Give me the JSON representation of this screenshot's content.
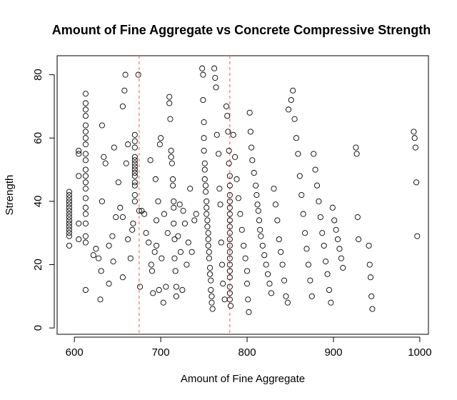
{
  "chart_data": {
    "type": "scatter",
    "title": "Amount of Fine Aggregate vs Concrete Compressive Strength",
    "xlabel": "Amount of Fine Aggregate",
    "ylabel": "Strength",
    "xlim": [
      580,
      1010
    ],
    "ylim": [
      -2,
      86
    ],
    "x_ticks": [
      "600",
      "700",
      "800",
      "900",
      "1000"
    ],
    "y_ticks": [
      "0",
      "20",
      "40",
      "60",
      "80"
    ],
    "grid": false,
    "reference_lines": [
      {
        "x": 675,
        "color": "#ff4d4d",
        "style": "dashed"
      },
      {
        "x": 780,
        "color": "#ff4d4d",
        "style": "dashed"
      }
    ],
    "points": [
      [
        594,
        26
      ],
      [
        594,
        29
      ],
      [
        594,
        30
      ],
      [
        594,
        31
      ],
      [
        594,
        32
      ],
      [
        594,
        33
      ],
      [
        594,
        34
      ],
      [
        594,
        35
      ],
      [
        594,
        36
      ],
      [
        594,
        37
      ],
      [
        594,
        38
      ],
      [
        594,
        39
      ],
      [
        594,
        40
      ],
      [
        594,
        41
      ],
      [
        594,
        42
      ],
      [
        594,
        43
      ],
      [
        605,
        28
      ],
      [
        605,
        33
      ],
      [
        605,
        48
      ],
      [
        605,
        55
      ],
      [
        605,
        56
      ],
      [
        613,
        12
      ],
      [
        613,
        27
      ],
      [
        613,
        29
      ],
      [
        613,
        33
      ],
      [
        613,
        36
      ],
      [
        613,
        38
      ],
      [
        613,
        41
      ],
      [
        613,
        44
      ],
      [
        613,
        46
      ],
      [
        613,
        48
      ],
      [
        613,
        50
      ],
      [
        613,
        53
      ],
      [
        613,
        55
      ],
      [
        613,
        58
      ],
      [
        613,
        60
      ],
      [
        613,
        62
      ],
      [
        613,
        64
      ],
      [
        613,
        67
      ],
      [
        613,
        69
      ],
      [
        613,
        71
      ],
      [
        613,
        74
      ],
      [
        622,
        23
      ],
      [
        625,
        25
      ],
      [
        628,
        22
      ],
      [
        630,
        9
      ],
      [
        631,
        18
      ],
      [
        632,
        40
      ],
      [
        632,
        64
      ],
      [
        634,
        54
      ],
      [
        636,
        52
      ],
      [
        640,
        14
      ],
      [
        640,
        26
      ],
      [
        644,
        29
      ],
      [
        645,
        21
      ],
      [
        646,
        57
      ],
      [
        648,
        35
      ],
      [
        651,
        46
      ],
      [
        653,
        38
      ],
      [
        656,
        16
      ],
      [
        656,
        35
      ],
      [
        656,
        70
      ],
      [
        658,
        75
      ],
      [
        659,
        80
      ],
      [
        660,
        52
      ],
      [
        662,
        28
      ],
      [
        662,
        58
      ],
      [
        665,
        22
      ],
      [
        667,
        31
      ],
      [
        668,
        33
      ],
      [
        670,
        40
      ],
      [
        670,
        42
      ],
      [
        670,
        45
      ],
      [
        670,
        46
      ],
      [
        670,
        48
      ],
      [
        670,
        49
      ],
      [
        670,
        50
      ],
      [
        670,
        51
      ],
      [
        670,
        52
      ],
      [
        670,
        53
      ],
      [
        670,
        54
      ],
      [
        670,
        57
      ],
      [
        670,
        59
      ],
      [
        670,
        61
      ],
      [
        674,
        80
      ],
      [
        675,
        37
      ],
      [
        676,
        13
      ],
      [
        678,
        37
      ],
      [
        681,
        36
      ],
      [
        683,
        30
      ],
      [
        686,
        27
      ],
      [
        688,
        53
      ],
      [
        689,
        20
      ],
      [
        690,
        18
      ],
      [
        691,
        11
      ],
      [
        693,
        24
      ],
      [
        694,
        47
      ],
      [
        695,
        34
      ],
      [
        695,
        26
      ],
      [
        697,
        40
      ],
      [
        698,
        12
      ],
      [
        699,
        58
      ],
      [
        700,
        60
      ],
      [
        701,
        22
      ],
      [
        703,
        8
      ],
      [
        704,
        36
      ],
      [
        706,
        13
      ],
      [
        708,
        30
      ],
      [
        710,
        73
      ],
      [
        710,
        71
      ],
      [
        711,
        66
      ],
      [
        712,
        56
      ],
      [
        712,
        54
      ],
      [
        713,
        52
      ],
      [
        714,
        47
      ],
      [
        714,
        45
      ],
      [
        715,
        40
      ],
      [
        715,
        38
      ],
      [
        715,
        33
      ],
      [
        716,
        28
      ],
      [
        716,
        22
      ],
      [
        717,
        18
      ],
      [
        718,
        13
      ],
      [
        718,
        10
      ],
      [
        720,
        29
      ],
      [
        722,
        39
      ],
      [
        723,
        24
      ],
      [
        725,
        12
      ],
      [
        726,
        37
      ],
      [
        728,
        33
      ],
      [
        730,
        20
      ],
      [
        732,
        27
      ],
      [
        734,
        44
      ],
      [
        736,
        24
      ],
      [
        739,
        34
      ],
      [
        741,
        36
      ],
      [
        748,
        82
      ],
      [
        749,
        80
      ],
      [
        749,
        72
      ],
      [
        750,
        65
      ],
      [
        750,
        60
      ],
      [
        750,
        56
      ],
      [
        751,
        52
      ],
      [
        751,
        50
      ],
      [
        751,
        47
      ],
      [
        752,
        45
      ],
      [
        752,
        43
      ],
      [
        753,
        40
      ],
      [
        753,
        38
      ],
      [
        753,
        36
      ],
      [
        754,
        34
      ],
      [
        754,
        32
      ],
      [
        755,
        30
      ],
      [
        755,
        28
      ],
      [
        755,
        26
      ],
      [
        756,
        24
      ],
      [
        756,
        22
      ],
      [
        757,
        19
      ],
      [
        757,
        17
      ],
      [
        758,
        15
      ],
      [
        758,
        12
      ],
      [
        759,
        10
      ],
      [
        759,
        8
      ],
      [
        760,
        6
      ],
      [
        762,
        82
      ],
      [
        763,
        79
      ],
      [
        764,
        76
      ],
      [
        765,
        61
      ],
      [
        767,
        55
      ],
      [
        768,
        44
      ],
      [
        769,
        39
      ],
      [
        770,
        27
      ],
      [
        771,
        20
      ],
      [
        772,
        14
      ],
      [
        774,
        9
      ],
      [
        776,
        70
      ],
      [
        777,
        67
      ],
      [
        778,
        62
      ],
      [
        779,
        56
      ],
      [
        779,
        52
      ],
      [
        780,
        48
      ],
      [
        780,
        45
      ],
      [
        780,
        42
      ],
      [
        780,
        40
      ],
      [
        780,
        38
      ],
      [
        780,
        36
      ],
      [
        780,
        34
      ],
      [
        780,
        32
      ],
      [
        780,
        30
      ],
      [
        780,
        28
      ],
      [
        780,
        26
      ],
      [
        780,
        24
      ],
      [
        780,
        22
      ],
      [
        780,
        20
      ],
      [
        780,
        18
      ],
      [
        780,
        16
      ],
      [
        780,
        13
      ],
      [
        780,
        11
      ],
      [
        780,
        9
      ],
      [
        781,
        7
      ],
      [
        784,
        61
      ],
      [
        786,
        54
      ],
      [
        788,
        47
      ],
      [
        790,
        41
      ],
      [
        792,
        36
      ],
      [
        794,
        31
      ],
      [
        796,
        26
      ],
      [
        798,
        22
      ],
      [
        800,
        18
      ],
      [
        800,
        14
      ],
      [
        801,
        9
      ],
      [
        802,
        5
      ],
      [
        803,
        68
      ],
      [
        804,
        62
      ],
      [
        805,
        57
      ],
      [
        806,
        53
      ],
      [
        808,
        49
      ],
      [
        810,
        45
      ],
      [
        811,
        42
      ],
      [
        812,
        39
      ],
      [
        813,
        37
      ],
      [
        814,
        34
      ],
      [
        815,
        31
      ],
      [
        816,
        29
      ],
      [
        818,
        26
      ],
      [
        820,
        23
      ],
      [
        822,
        20
      ],
      [
        824,
        17
      ],
      [
        826,
        14
      ],
      [
        828,
        11
      ],
      [
        831,
        44
      ],
      [
        833,
        39
      ],
      [
        835,
        34
      ],
      [
        837,
        28
      ],
      [
        839,
        24
      ],
      [
        841,
        20
      ],
      [
        843,
        15
      ],
      [
        845,
        10
      ],
      [
        847,
        8
      ],
      [
        848,
        69
      ],
      [
        851,
        72
      ],
      [
        853,
        75
      ],
      [
        855,
        66
      ],
      [
        857,
        60
      ],
      [
        859,
        55
      ],
      [
        861,
        48
      ],
      [
        863,
        42
      ],
      [
        865,
        36
      ],
      [
        867,
        30
      ],
      [
        869,
        25
      ],
      [
        871,
        20
      ],
      [
        873,
        15
      ],
      [
        875,
        10
      ],
      [
        877,
        55
      ],
      [
        879,
        50
      ],
      [
        881,
        45
      ],
      [
        883,
        40
      ],
      [
        885,
        35
      ],
      [
        887,
        30
      ],
      [
        889,
        26
      ],
      [
        891,
        21
      ],
      [
        893,
        17
      ],
      [
        895,
        12
      ],
      [
        897,
        8
      ],
      [
        899,
        38
      ],
      [
        901,
        34
      ],
      [
        903,
        31
      ],
      [
        905,
        28
      ],
      [
        907,
        25
      ],
      [
        909,
        22
      ],
      [
        911,
        19
      ],
      [
        926,
        57
      ],
      [
        927,
        55
      ],
      [
        928,
        35
      ],
      [
        929,
        28
      ],
      [
        941,
        26
      ],
      [
        942,
        20
      ],
      [
        943,
        16
      ],
      [
        944,
        10
      ],
      [
        945,
        6
      ],
      [
        993,
        62
      ],
      [
        994,
        60
      ],
      [
        995,
        57
      ],
      [
        996,
        46
      ],
      [
        997,
        29
      ]
    ]
  }
}
